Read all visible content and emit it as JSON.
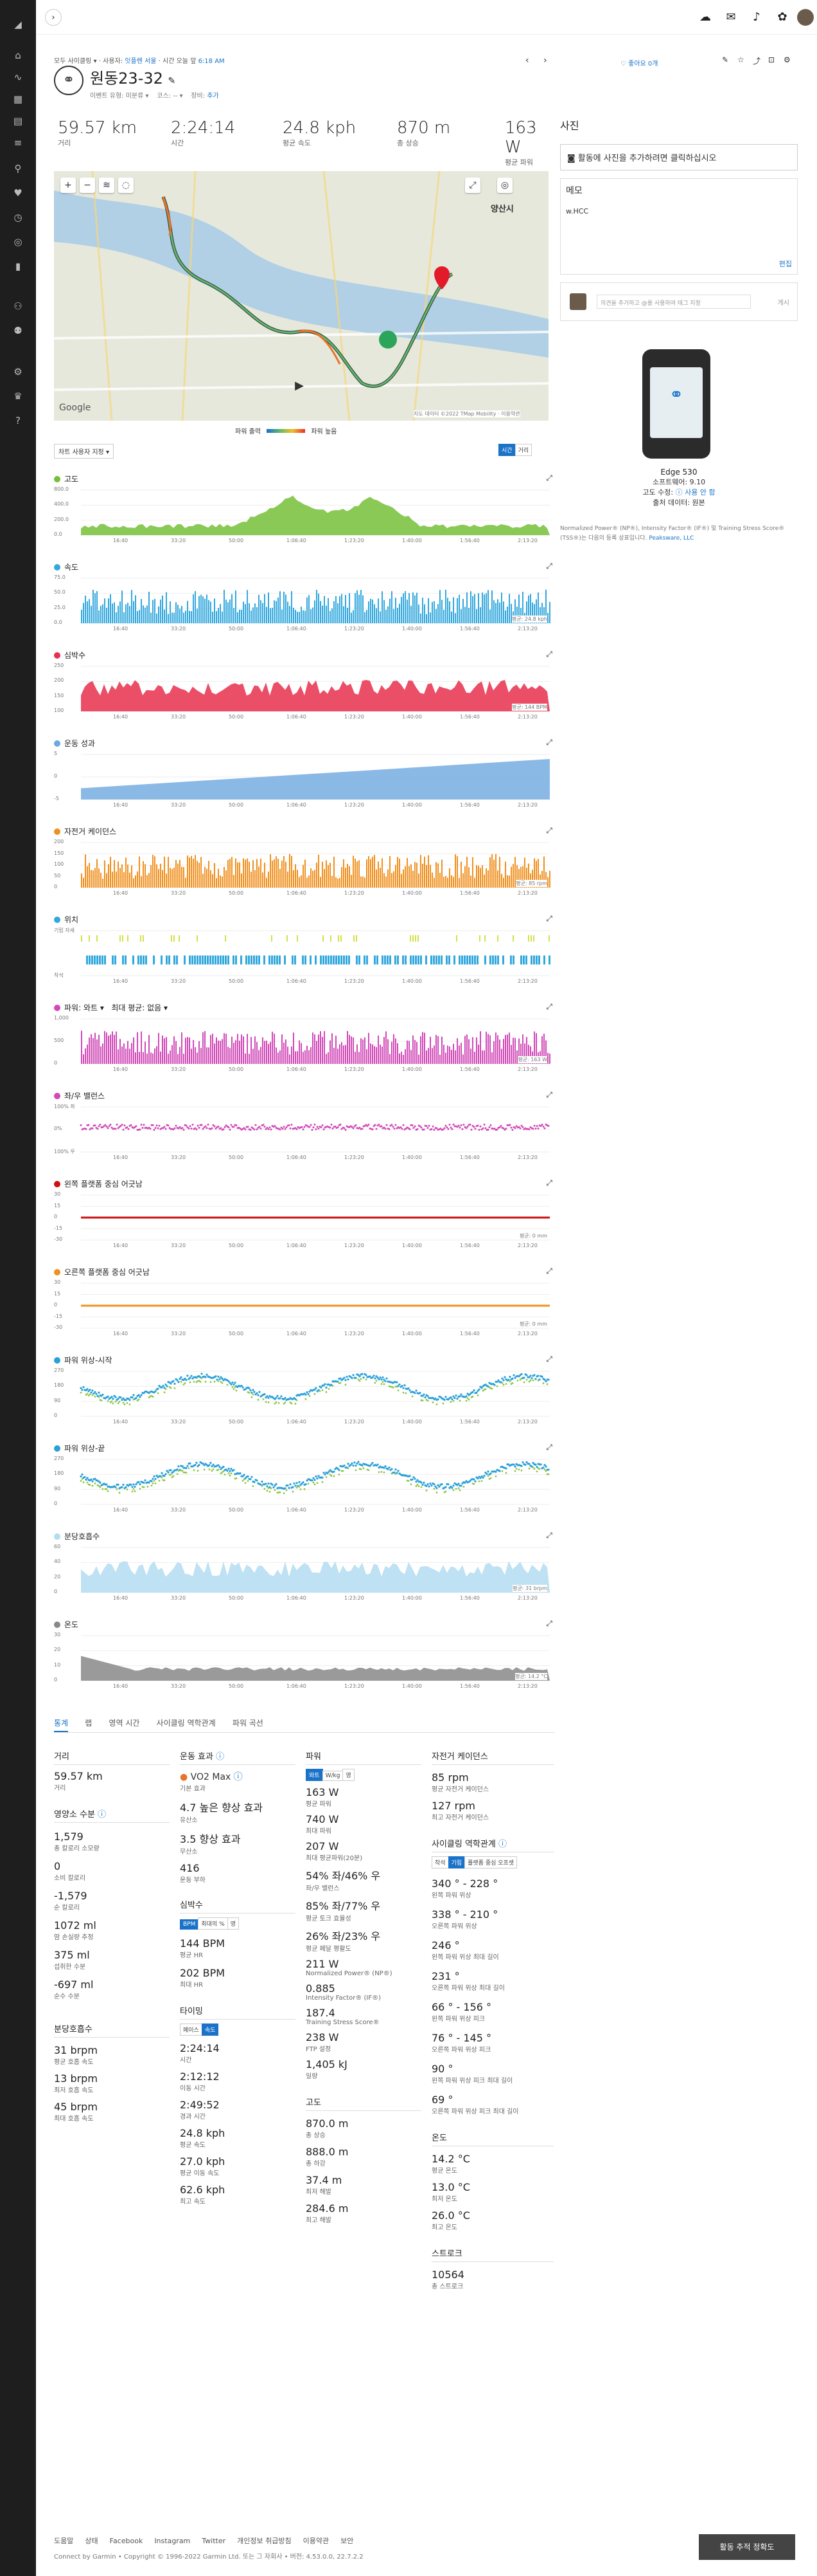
{
  "breadcrumb": {
    "a": "모두 사이클링",
    "b": "사용자:",
    "user": "잇플렌 서울",
    "c": "시간 오늘 앞",
    "time": "6:18 AM"
  },
  "activity": {
    "title": "원동23-32",
    "sub1": "이벤트 유형: 미분류",
    "sub2": "코스: --",
    "sub3": "장비:",
    "sub3link": "추가"
  },
  "header_actions": {
    "like": "좋아요 0개"
  },
  "stats": [
    {
      "v": "59.57 km",
      "l": "거리"
    },
    {
      "v": "2:24:14",
      "l": "시간"
    },
    {
      "v": "24.8 kph",
      "l": "평균 속도"
    },
    {
      "v": "870 m",
      "l": "총 상승"
    },
    {
      "v": "163 W",
      "l": "평균 파워"
    }
  ],
  "map": {
    "legend_left": "파워 출력",
    "legend_right": "파워 높음",
    "attrib": "지도 데이터 ©2022 TMap Mobility",
    "terms": "이용약관",
    "label_city": "양산시",
    "logo": "Google"
  },
  "chart_controls": {
    "dropdown": "차트 사용자 지정",
    "btn1": "시간",
    "btn2": "거리"
  },
  "charts": [
    {
      "name": "고도",
      "color": "#77bf3a",
      "type": "area",
      "ticks": [
        "800.0",
        "400.0",
        "200.0",
        "0.0"
      ]
    },
    {
      "name": "속도",
      "color": "#32a8dd",
      "type": "bar",
      "ticks": [
        "75.0",
        "50.0",
        "25.0",
        "0.0"
      ],
      "note": "평균: 24.8 kph"
    },
    {
      "name": "심박수",
      "color": "#e8304e",
      "type": "area",
      "ticks": [
        "250",
        "200",
        "150",
        "100"
      ],
      "note": "평균: 144 BPM"
    },
    {
      "name": "운동 성과",
      "color": "#6ea8e0",
      "type": "step",
      "ticks": [
        "5",
        "0",
        "-5"
      ]
    },
    {
      "name": "자전거 케이던스",
      "color": "#f0901e",
      "type": "bar",
      "ticks": [
        "200",
        "150",
        "100",
        "50",
        "0"
      ],
      "note": "평균: 85 rpm"
    },
    {
      "name": "위치",
      "color": "#32a8dd",
      "type": "pos",
      "ticks": [
        "기립 자세",
        "착석"
      ]
    },
    {
      "name": "파워: 와트",
      "extra": "최대 평균: 없음",
      "color": "#d14ab8",
      "type": "bar",
      "ticks": [
        "1,000",
        "500",
        "0"
      ],
      "note": "평균: 163 W"
    },
    {
      "name": "좌/우 밸런스",
      "color": "#d14ab8",
      "type": "scatter",
      "ticks": [
        "100% 좌",
        "0%",
        "100% 우"
      ]
    },
    {
      "name": "왼쪽 플랫폼 중심 어긋남",
      "color": "#cc1111",
      "type": "flat",
      "ticks": [
        "30",
        "15",
        "0",
        "-15",
        "-30"
      ],
      "note": "평균: 0 mm"
    },
    {
      "name": "오른쪽 플랫폼 중심 어긋남",
      "color": "#f0901e",
      "type": "flat",
      "ticks": [
        "30",
        "15",
        "0",
        "-15",
        "-30"
      ],
      "note": "평균: 0 mm"
    },
    {
      "name": "파워 위상-시작",
      "color": "#2aa0d8",
      "type": "scatter2",
      "ticks": [
        "270",
        "180",
        "90",
        "0"
      ]
    },
    {
      "name": "파워 위상-끝",
      "color": "#2aa0d8",
      "type": "scatter2",
      "ticks": [
        "270",
        "180",
        "90",
        "0"
      ]
    },
    {
      "name": "분당호흡수",
      "color": "#b4dcf2",
      "type": "area",
      "ticks": [
        "60",
        "40",
        "20",
        "0"
      ],
      "note": "평균: 31 brpm"
    },
    {
      "name": "온도",
      "color": "#888888",
      "type": "area",
      "ticks": [
        "30",
        "20",
        "10",
        "0"
      ],
      "note": "평균: 14.2 °C"
    }
  ],
  "time_ticks": [
    "16:40",
    "33:20",
    "50:00",
    "1:06:40",
    "1:23:20",
    "1:40:00",
    "1:56:40",
    "2:13:20"
  ],
  "tabs": [
    "통계",
    "랩",
    "영역 시간",
    "사이클링 역학관계",
    "파워 곡선"
  ],
  "col1": {
    "dist_h": "거리",
    "dist": "59.57 km",
    "dist_l": "거리",
    "alt_h": "영양소 수분",
    "items": [
      {
        "v": "1,579",
        "l": "총 칼로리 소모량"
      },
      {
        "v": "0",
        "l": "소비 칼로리"
      },
      {
        "v": "-1,579",
        "l": "순 칼로리"
      },
      {
        "v": "1072 ml",
        "l": "땀 손실량 추정"
      },
      {
        "v": "375 ml",
        "l": "섭취한 수분"
      },
      {
        "v": "-697 ml",
        "l": "순수 수분"
      }
    ],
    "br_h": "분당호흡수",
    "br": [
      {
        "v": "31 brpm",
        "l": "평균 호흡 속도"
      },
      {
        "v": "13 brpm",
        "l": "최저 호흡 속도"
      },
      {
        "v": "45 brpm",
        "l": "최대 호흡 속도"
      }
    ]
  },
  "col2": {
    "h": "운동 효과",
    "vo2": "VO2 Max",
    "vo2l": "기본 효과",
    "ae": "4.7 높은 향상 효과",
    "ael": "유산소",
    "an": "3.5 향상 효과",
    "anl": "무산소",
    "load": "416",
    "loadl": "운동 부하",
    "hr_h": "심박수",
    "hrbtn": [
      "BPM",
      "최대의 %",
      "영"
    ],
    "hr": [
      {
        "v": "144 BPM",
        "l": "평균 HR"
      },
      {
        "v": "202 BPM",
        "l": "최대 HR"
      }
    ],
    "time_h": "타이밍",
    "timebtn": [
      "페이스",
      "속도"
    ],
    "time": [
      {
        "v": "2:24:14",
        "l": "시간"
      },
      {
        "v": "2:12:12",
        "l": "이동 시간"
      },
      {
        "v": "2:49:52",
        "l": "경과 시간"
      },
      {
        "v": "24.8 kph",
        "l": "평균 속도"
      },
      {
        "v": "27.0 kph",
        "l": "평균 이동 속도"
      },
      {
        "v": "62.6 kph",
        "l": "최고 속도"
      }
    ]
  },
  "col3": {
    "h": "파워",
    "pbtn": [
      "와트",
      "W/kg",
      "영"
    ],
    "items": [
      {
        "v": "163 W",
        "l": "평균 파워"
      },
      {
        "v": "740 W",
        "l": "최대 파워"
      },
      {
        "v": "207 W",
        "l": "최대 평균파워(20분)"
      },
      {
        "v": "54% 좌/46% 우",
        "l": "좌/우 밸런스"
      },
      {
        "v": "85% 좌/77% 우",
        "l": "평균 토크 효율성"
      },
      {
        "v": "26% 좌/23% 우",
        "l": "평균 페달 평활도"
      },
      {
        "v": "211 W",
        "l": "Normalized Power® (NP®)"
      },
      {
        "v": "0.885",
        "l": "Intensity Factor® (IF®)"
      },
      {
        "v": "187.4",
        "l": "Training Stress Score®"
      },
      {
        "v": "238 W",
        "l": "FTP 설정"
      },
      {
        "v": "1,405 kJ",
        "l": "일량"
      }
    ],
    "el_h": "고도",
    "el": [
      {
        "v": "870.0 m",
        "l": "총 상승"
      },
      {
        "v": "888.0 m",
        "l": "총 하강"
      },
      {
        "v": "37.4 m",
        "l": "최저 해발"
      },
      {
        "v": "284.6 m",
        "l": "최고 해발"
      }
    ]
  },
  "col4": {
    "h": "자전거 케이던스",
    "items": [
      {
        "v": "85 rpm",
        "l": "평균 자전거 케이던스"
      },
      {
        "v": "127 rpm",
        "l": "최고 자전거 케이던스"
      }
    ],
    "dyn_h": "사이클링 역학관계",
    "dynbtn": [
      "착석",
      "기립",
      "플랫폼 중심 오프셋"
    ],
    "dyn": [
      {
        "v": "340 ° - 228 °",
        "l": "왼쪽 파워 위상"
      },
      {
        "v": "338 ° - 210 °",
        "l": "오른쪽 파워 위상"
      },
      {
        "v": "246 °",
        "l": "왼쪽 파워 위상 최대 길이"
      },
      {
        "v": "231 °",
        "l": "오른쪽 파워 위상 최대 길이"
      },
      {
        "v": "66 ° - 156 °",
        "l": "왼쪽 파워 위상 피크"
      },
      {
        "v": "76 ° - 145 °",
        "l": "오른쪽 파워 위상 피크"
      },
      {
        "v": "90 °",
        "l": "왼쪽 파워 위상 피크 최대 길이"
      },
      {
        "v": "69 °",
        "l": "오른쪽 파워 위상 피크 최대 길이"
      }
    ],
    "temp_h": "온도",
    "temp": [
      {
        "v": "14.2 °C",
        "l": "평균 온도"
      },
      {
        "v": "13.0 °C",
        "l": "최저 온도"
      },
      {
        "v": "26.0 °C",
        "l": "최고 온도"
      }
    ],
    "st_h": "스트로크",
    "st": [
      {
        "v": "10564",
        "l": "총 스트로크"
      }
    ]
  },
  "side": {
    "photo_h": "사진",
    "photo_btn": "활동에 사진을 추가하려면 클릭하십시오",
    "memo_h": "메모",
    "memo": "w.HCC",
    "edit": "편집",
    "comment_ph": "의견을 추가하고 @를 사용하여 태그 지정",
    "post": "게시",
    "device": "Edge 530",
    "sw": "소프트웨어: 9.10",
    "elev": "고도 수정:",
    "elev_val": "사용 안 함",
    "src": "출처 데이터: 원본",
    "legal": "Normalized Power® (NP®), Intensity Factor® (IF®) 및 Training Stress Score® (TSS®)는 다음의 등록 상표입니다.",
    "legal_link": "Peaksware, LLC"
  },
  "footer": {
    "links": [
      "도움말",
      "상태",
      "Facebook",
      "Instagram",
      "Twitter",
      "개인정보 취급방침",
      "이용약관",
      "보안"
    ],
    "copy": "Connect by Garmin • Copyright © 1996-2022 Garmin Ltd. 또는 그 자회사 • 버전: 4.53.0.0, 22.7.2.2",
    "btn": "활동 추적 정확도"
  }
}
